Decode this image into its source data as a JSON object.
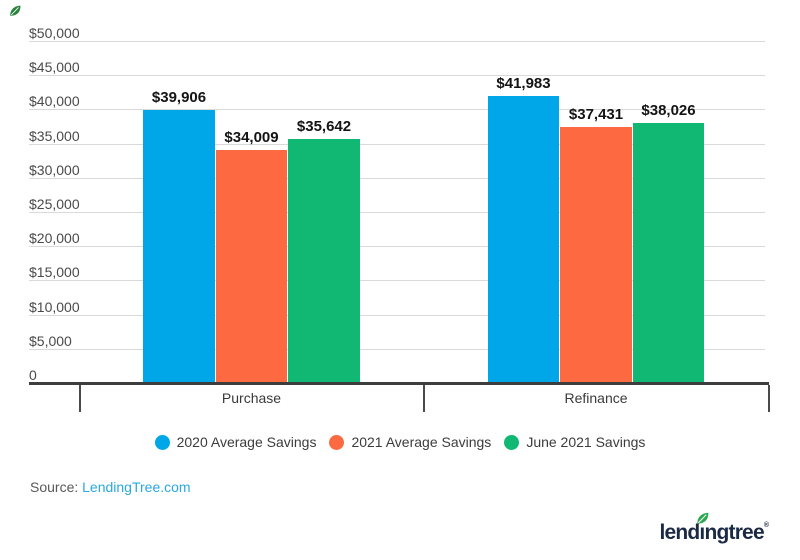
{
  "chart_data": {
    "type": "bar",
    "title": "",
    "categories": [
      "Purchase",
      "Refinance"
    ],
    "series": [
      {
        "name": "2020 Average Savings",
        "color": "#00a7e8",
        "values": [
          39906,
          41983
        ],
        "labels": [
          "$39,906",
          "$41,983"
        ]
      },
      {
        "name": "2021 Average Savings",
        "color": "#fd6a41",
        "values": [
          34009,
          37431
        ],
        "labels": [
          "$34,009",
          "$37,431"
        ]
      },
      {
        "name": "June 2021 Savings",
        "color": "#10b873",
        "values": [
          35642,
          38026
        ],
        "labels": [
          "$35,642",
          "$38,026"
        ]
      }
    ],
    "ylim": [
      0,
      50000
    ],
    "ytick_step": 5000,
    "yticks": [
      "$50,000",
      "$45,000",
      "$40,000",
      "$35,000",
      "$30,000",
      "$25,000",
      "$20,000",
      "$15,000",
      "$10,000",
      "$5,000",
      "0"
    ],
    "grid": true,
    "legend_position": "bottom",
    "xlabel": "",
    "ylabel": ""
  },
  "source": {
    "prefix": "Source: ",
    "link_text": "LendingTree.com"
  },
  "logo": {
    "text": "lendıngtree",
    "registered": "®",
    "text_color": "#1b2a44",
    "leaf_color": "#2aa84f"
  },
  "icons": {
    "corner_leaf": "leaf-icon",
    "logo_leaf": "leaf-icon"
  },
  "colors": {
    "background": "#ffffff",
    "gridline": "#d9d9d9",
    "axis": "#3d3d3d",
    "ytick_text": "#4a4a4b",
    "bar_label_text": "#141414",
    "category_text": "#3a3a3a",
    "legend_text": "#3c3c3c",
    "source_text": "#58595b",
    "source_link": "#29a9e1"
  }
}
